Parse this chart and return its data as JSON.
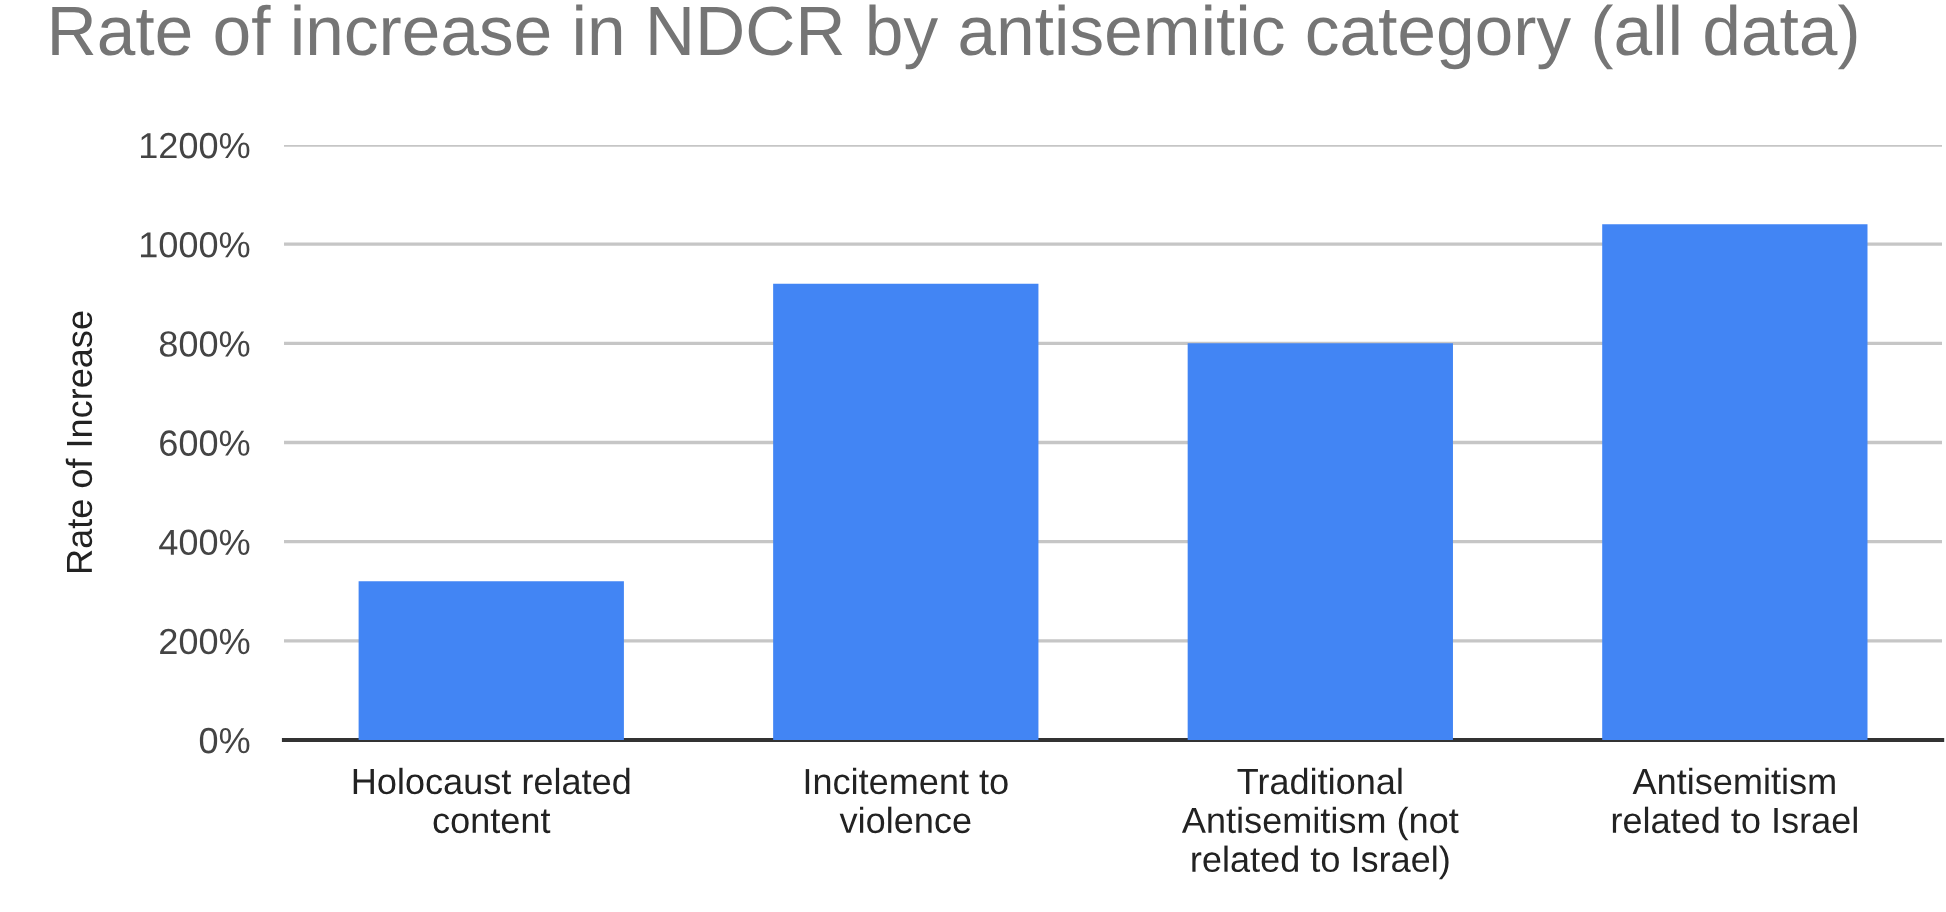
{
  "chart_data": {
    "type": "bar",
    "title": "Rate of increase in NDCR by antisemitic category (all data)",
    "ylabel": "Rate of Increase",
    "categories": [
      "Holocaust related\ncontent",
      "Incitement to\nviolence",
      "Traditional\nAntisemitism (not\nrelated to Israel)",
      "Antisemitism\nrelated to Israel"
    ],
    "values": [
      320,
      920,
      800,
      1040
    ],
    "color": "#4285f4",
    "ylim": [
      0,
      1200
    ],
    "yticks": [
      {
        "value": 0,
        "label": "0%"
      },
      {
        "value": 200,
        "label": "200%"
      },
      {
        "value": 400,
        "label": "400%"
      },
      {
        "value": 600,
        "label": "600%"
      },
      {
        "value": 800,
        "label": "800%"
      },
      {
        "value": 1000,
        "label": "1000%"
      },
      {
        "value": 1200,
        "label": "1200%"
      }
    ],
    "grid": "y",
    "legend": false
  }
}
